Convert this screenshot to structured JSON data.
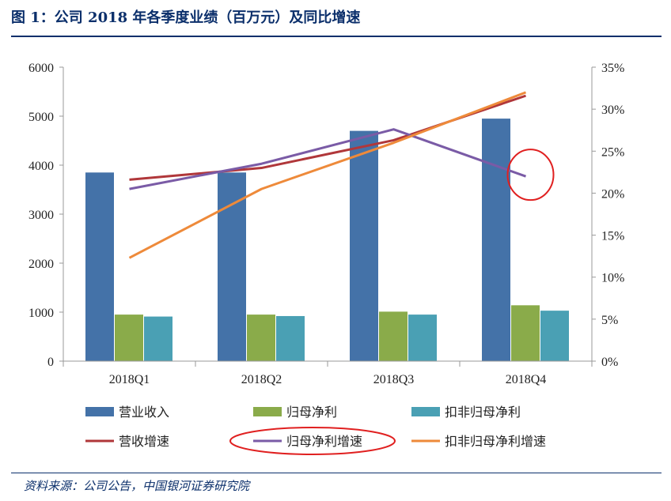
{
  "title": "图 1：公司 2018 年各季度业绩（百万元）及同比增速",
  "source": "资料来源：公司公告，中国银河证券研究院",
  "chart_data": {
    "type": "bar",
    "categories": [
      "2018Q1",
      "2018Q2",
      "2018Q3",
      "2018Q4"
    ],
    "y_left": {
      "min": 0,
      "max": 6000,
      "ticks": [
        "0",
        "1000",
        "2000",
        "3000",
        "4000",
        "5000",
        "6000"
      ]
    },
    "y_right": {
      "min": 0,
      "max": 35,
      "ticks": [
        "0%",
        "5%",
        "10%",
        "15%",
        "20%",
        "25%",
        "30%",
        "35%"
      ]
    },
    "bar_series": [
      {
        "name": "营业收入",
        "color": "#4472a8",
        "values": [
          3850,
          3850,
          4700,
          4950
        ]
      },
      {
        "name": "归母净利",
        "color": "#8aab4a",
        "values": [
          950,
          950,
          1010,
          1140
        ]
      },
      {
        "name": "扣非归母净利",
        "color": "#4aa0b4",
        "values": [
          910,
          920,
          950,
          1030
        ]
      }
    ],
    "line_series": [
      {
        "name": "营收增速",
        "color": "#b0373a",
        "values": [
          21.6,
          23.0,
          26.3,
          31.6
        ]
      },
      {
        "name": "归母净利增速",
        "color": "#7a5ba6",
        "values": [
          20.5,
          23.5,
          27.6,
          22.0
        ]
      },
      {
        "name": "扣非归母净利增速",
        "color": "#ee8a3a",
        "values": [
          12.3,
          20.5,
          26.0,
          32.0
        ]
      }
    ],
    "highlights": [
      "归母净利增速 2018Q4 point circled",
      "归母净利增速 legend entry circled"
    ],
    "highlight_color": "#e02020",
    "grid": false,
    "legend_position": "bottom"
  }
}
